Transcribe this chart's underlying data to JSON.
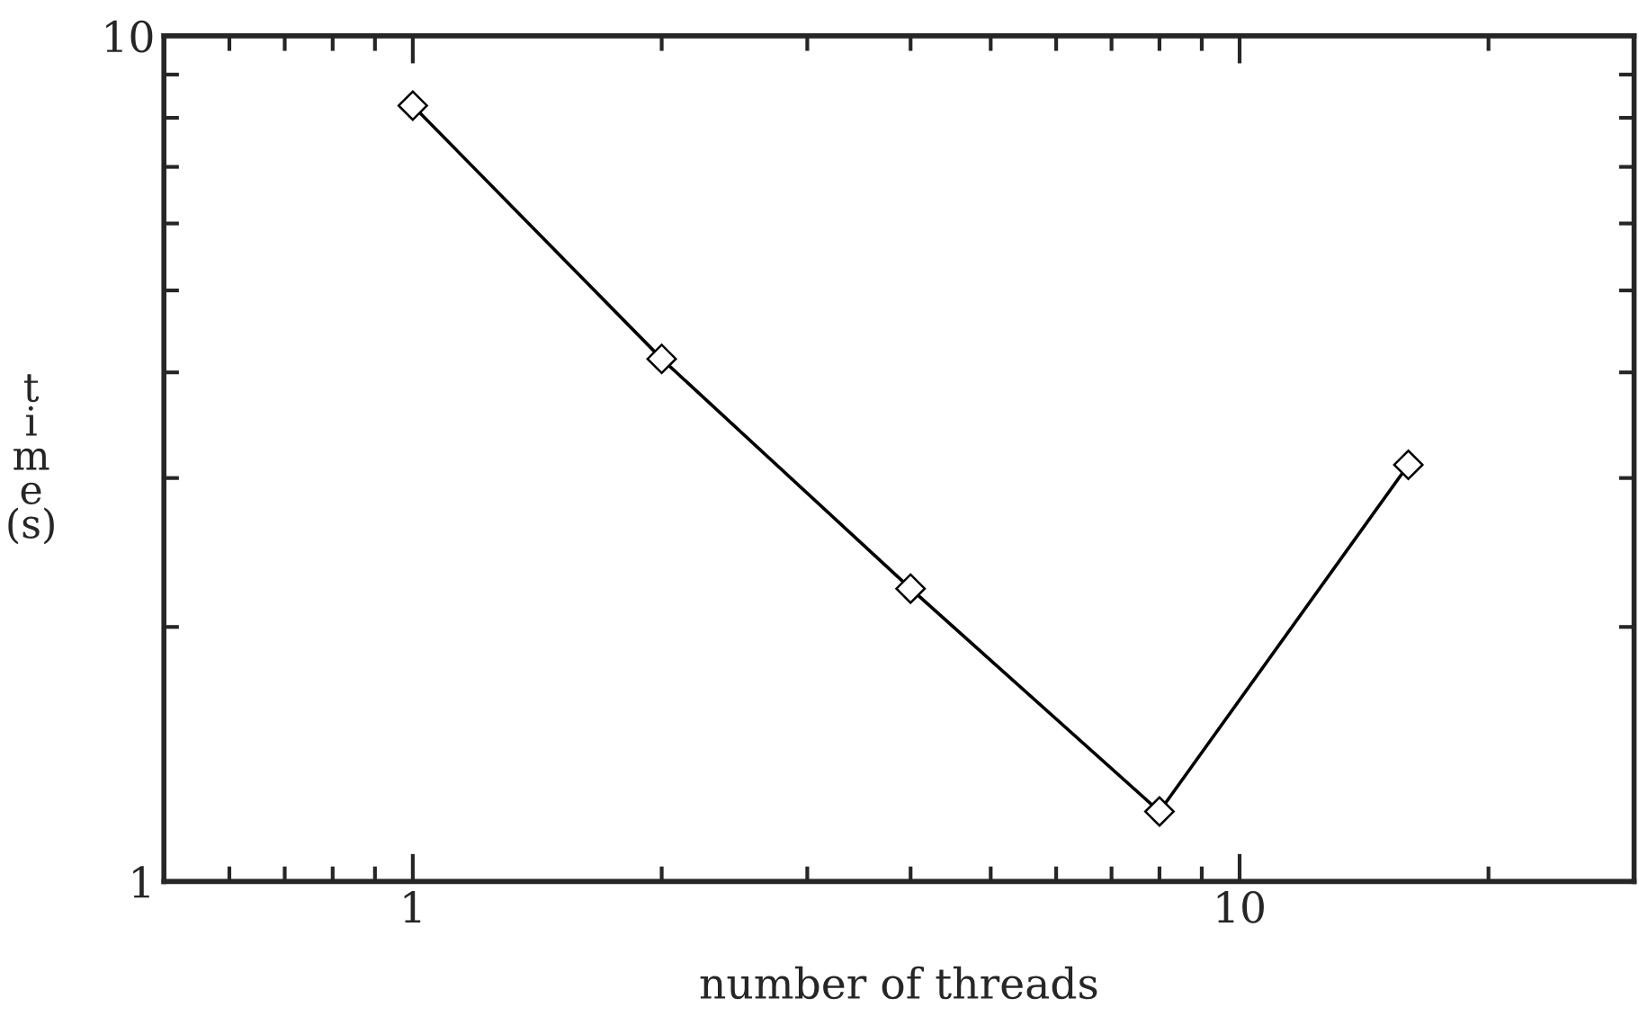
{
  "chart_data": {
    "type": "line",
    "xlabel": "number of threads",
    "ylabel": "time (s)",
    "x": [
      1,
      2,
      4,
      8,
      16
    ],
    "series": [
      {
        "color": "#000000",
        "values": [
          8.27,
          4.15,
          2.22,
          1.21,
          3.11
        ]
      }
    ],
    "log": "xy",
    "xlim": [
      0.5,
      30
    ],
    "ylim": [
      1,
      10
    ],
    "xticks": [
      1,
      10
    ],
    "yticks": [
      1,
      10
    ],
    "marker": "diamond",
    "line_style": "solid",
    "grid": false
  }
}
